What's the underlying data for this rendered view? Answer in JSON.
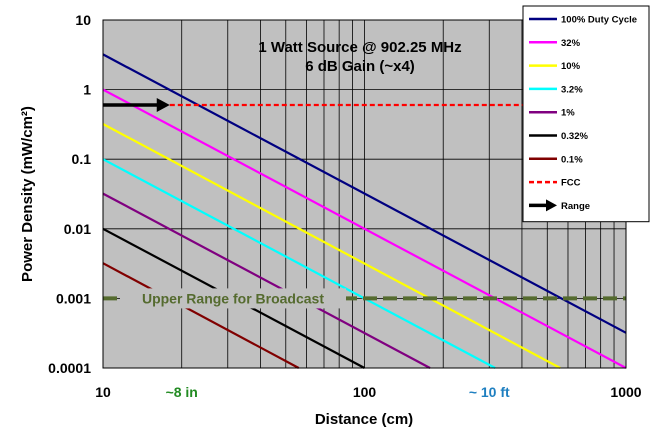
{
  "chart_data": {
    "type": "line",
    "title_line1": "1 Watt Source @ 902.25 MHz",
    "title_line2": "6 dB Gain (~x4)",
    "xlabel": "Distance (cm)",
    "ylabel": "Power Density (mW/cm²)",
    "x_scale": "log",
    "y_scale": "log",
    "xlim": [
      10,
      1000
    ],
    "ylim": [
      0.0001,
      10
    ],
    "x_ticks": [
      {
        "value": 10,
        "label": "10"
      },
      {
        "value": 100,
        "label": "100"
      },
      {
        "value": 1000,
        "label": "1000"
      }
    ],
    "y_ticks": [
      {
        "value": 10,
        "label": "10"
      },
      {
        "value": 1,
        "label": "1"
      },
      {
        "value": 0.1,
        "label": "0.1"
      },
      {
        "value": 0.01,
        "label": "0.01"
      },
      {
        "value": 0.001,
        "label": "0.001"
      },
      {
        "value": 0.0001,
        "label": "0.0001"
      }
    ],
    "grid": true,
    "legend_position": "right",
    "series": [
      {
        "name": "100% Duty Cycle",
        "color": "#000080",
        "style": "solid",
        "x": [
          10,
          1000
        ],
        "y": [
          3.2,
          0.00032
        ]
      },
      {
        "name": "32%",
        "color": "#ff00ff",
        "style": "solid",
        "x": [
          10,
          1000
        ],
        "y": [
          1.0,
          0.0001
        ]
      },
      {
        "name": "10%",
        "color": "#ffff00",
        "style": "solid",
        "x": [
          10,
          560
        ],
        "y": [
          0.32,
          0.0001
        ]
      },
      {
        "name": "3.2%",
        "color": "#00ffff",
        "style": "solid",
        "x": [
          10,
          316
        ],
        "y": [
          0.1,
          0.0001
        ]
      },
      {
        "name": "1%",
        "color": "#800080",
        "style": "solid",
        "x": [
          10,
          178
        ],
        "y": [
          0.032,
          0.0001
        ]
      },
      {
        "name": "0.32%",
        "color": "#000000",
        "style": "solid",
        "x": [
          10,
          100
        ],
        "y": [
          0.01,
          0.0001
        ]
      },
      {
        "name": "0.1%",
        "color": "#800000",
        "style": "solid",
        "x": [
          10,
          56
        ],
        "y": [
          0.0032,
          0.0001
        ]
      },
      {
        "name": "FCC",
        "color": "#ff0000",
        "style": "dashed",
        "x": [
          18,
          1000
        ],
        "y": [
          0.6,
          0.6
        ]
      }
    ],
    "range_arrow": {
      "name": "Range",
      "color": "#000000",
      "x": [
        10,
        18
      ],
      "y": [
        0.6,
        0.6
      ]
    },
    "broadcast_line": {
      "label": "Upper Range for Broadcast",
      "color": "#556b2f",
      "x": [
        10,
        1000
      ],
      "y": [
        0.001,
        0.001
      ]
    },
    "annotations": [
      {
        "text": "~8 in",
        "x": 20,
        "color": "#228b22"
      },
      {
        "text": "~ 10 ft",
        "x": 300,
        "color": "#1e7fc0"
      }
    ]
  }
}
